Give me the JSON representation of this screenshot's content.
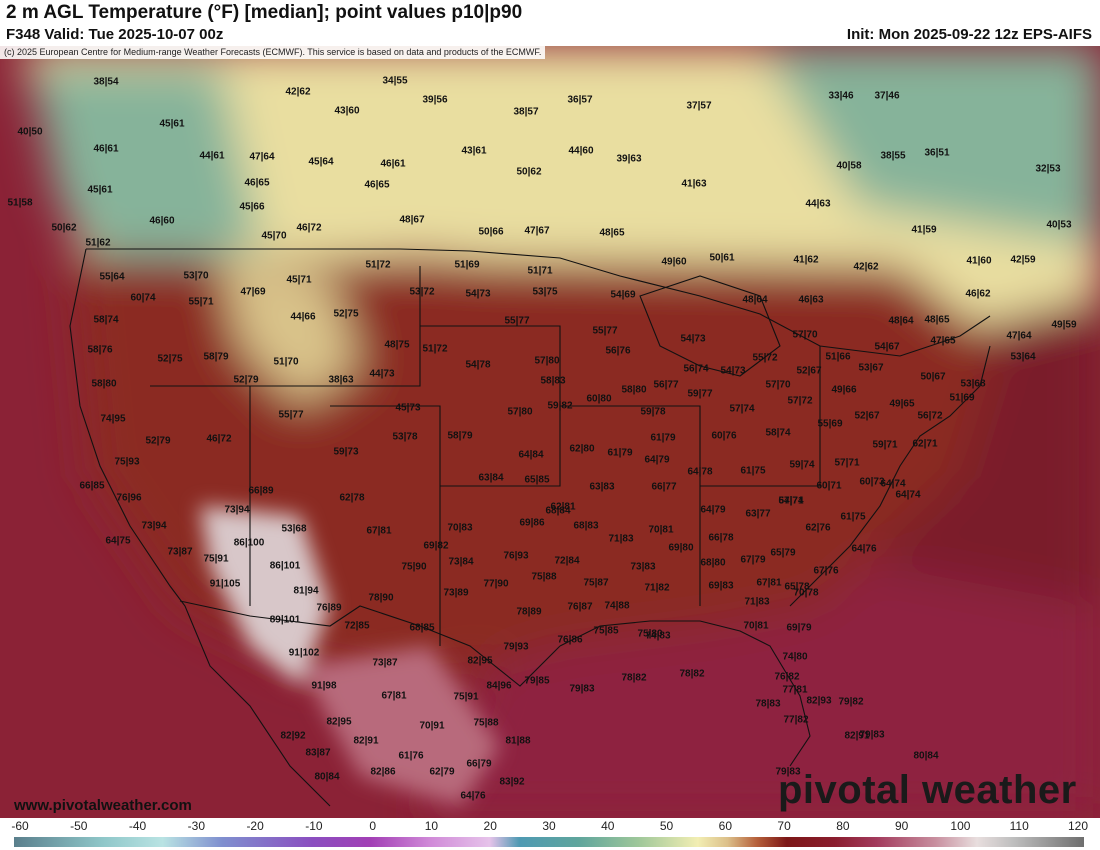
{
  "header": {
    "title": "2 m AGL Temperature (°F) [median]; point values p10|p90",
    "valid": "F348 Valid: Tue 2025-10-07 00z",
    "init": "Init: Mon 2025-09-22 12z EPS-AIFS"
  },
  "copyright": "(c) 2025 European Centre for Medium-range Weather Forecasts (ECMWF). This service is based on data and products of the ECMWF.",
  "website": "www.pivotalweather.com",
  "brand": "pivotal weather",
  "colorbar": {
    "ticks": [
      "-60",
      "-50",
      "-40",
      "-30",
      "-20",
      "-10",
      "0",
      "10",
      "20",
      "30",
      "40",
      "50",
      "60",
      "70",
      "80",
      "90",
      "100",
      "110",
      "120"
    ],
    "range": [
      -60,
      120
    ],
    "stops": [
      {
        "v": -60,
        "c": "#5a7f8c"
      },
      {
        "v": -45,
        "c": "#8fc7c9"
      },
      {
        "v": -35,
        "c": "#b9e3e3"
      },
      {
        "v": -25,
        "c": "#7f8fcf"
      },
      {
        "v": -10,
        "c": "#8a4fc0"
      },
      {
        "v": 0,
        "c": "#a23fb5"
      },
      {
        "v": 10,
        "c": "#d08ad8"
      },
      {
        "v": 20,
        "c": "#e6c3ea"
      },
      {
        "v": 25,
        "c": "#4f9ab3"
      },
      {
        "v": 35,
        "c": "#5fa59c"
      },
      {
        "v": 45,
        "c": "#9ec79a"
      },
      {
        "v": 55,
        "c": "#f2eeb3"
      },
      {
        "v": 60,
        "c": "#dcc08a"
      },
      {
        "v": 65,
        "c": "#b55f3a"
      },
      {
        "v": 70,
        "c": "#7c1717"
      },
      {
        "v": 78,
        "c": "#8a1d2e"
      },
      {
        "v": 85,
        "c": "#a23a5c"
      },
      {
        "v": 95,
        "c": "#c88f9f"
      },
      {
        "v": 102,
        "c": "#e8dede"
      },
      {
        "v": 108,
        "c": "#bfbfbf"
      },
      {
        "v": 120,
        "c": "#6e6e6e"
      }
    ]
  },
  "palette": {
    "ocean_pacific": "#8b2236",
    "ocean_gulf": "#8e2440",
    "ocean_atlantic": "#7a1f2a",
    "canada_cool": "#e9dea0",
    "canada_cold": "#86b39a",
    "us_warm": "#8b2a22",
    "desert_hot": "#d8c7c9",
    "boundary": "#111111"
  },
  "points": [
    {
      "label": "38|54"
    },
    {
      "label": "40|50"
    },
    {
      "label": "46|61"
    },
    {
      "label": "45|61"
    },
    {
      "label": "51|58"
    },
    {
      "label": "50|62"
    },
    {
      "label": "51|62"
    },
    {
      "label": "45|61"
    },
    {
      "label": "44|61"
    },
    {
      "label": "47|64"
    },
    {
      "label": "46|65"
    },
    {
      "label": "45|66"
    },
    {
      "label": "46|60"
    },
    {
      "label": "45|70"
    },
    {
      "label": "46|72"
    },
    {
      "label": "42|62"
    },
    {
      "label": "43|60"
    },
    {
      "label": "34|55"
    },
    {
      "label": "39|56"
    },
    {
      "label": "45|64"
    },
    {
      "label": "46|61"
    },
    {
      "label": "46|65"
    },
    {
      "label": "48|67"
    },
    {
      "label": "38|57"
    },
    {
      "label": "36|57"
    },
    {
      "label": "43|61"
    },
    {
      "label": "50|62"
    },
    {
      "label": "44|60"
    },
    {
      "label": "39|63"
    },
    {
      "label": "50|66"
    },
    {
      "label": "47|67"
    },
    {
      "label": "48|65"
    },
    {
      "label": "37|57"
    },
    {
      "label": "41|63"
    },
    {
      "label": "33|46"
    },
    {
      "label": "37|46"
    },
    {
      "label": "40|58"
    },
    {
      "label": "38|55"
    },
    {
      "label": "36|51"
    },
    {
      "label": "32|53"
    },
    {
      "label": "44|63"
    },
    {
      "label": "41|59"
    },
    {
      "label": "40|53"
    },
    {
      "label": "55|64"
    },
    {
      "label": "53|70"
    },
    {
      "label": "60|74"
    },
    {
      "label": "55|71"
    },
    {
      "label": "47|69"
    },
    {
      "label": "45|71"
    },
    {
      "label": "51|72"
    },
    {
      "label": "51|69"
    },
    {
      "label": "51|71"
    },
    {
      "label": "53|72"
    },
    {
      "label": "54|73"
    },
    {
      "label": "53|75"
    },
    {
      "label": "49|60"
    },
    {
      "label": "50|61"
    },
    {
      "label": "41|62"
    },
    {
      "label": "42|62"
    },
    {
      "label": "41|60"
    },
    {
      "label": "42|59"
    },
    {
      "label": "46|62"
    },
    {
      "label": "58|74"
    },
    {
      "label": "44|66"
    },
    {
      "label": "52|75"
    },
    {
      "label": "55|77"
    },
    {
      "label": "54|69"
    },
    {
      "label": "48|64"
    },
    {
      "label": "46|63"
    },
    {
      "label": "48|64"
    },
    {
      "label": "48|65"
    },
    {
      "label": "47|64"
    },
    {
      "label": "49|59"
    },
    {
      "label": "58|76"
    },
    {
      "label": "52|75"
    },
    {
      "label": "58|79"
    },
    {
      "label": "51|70"
    },
    {
      "label": "48|75"
    },
    {
      "label": "51|72"
    },
    {
      "label": "55|77"
    },
    {
      "label": "56|76"
    },
    {
      "label": "54|73"
    },
    {
      "label": "57|70"
    },
    {
      "label": "51|66"
    },
    {
      "label": "54|67"
    },
    {
      "label": "47|65"
    },
    {
      "label": "53|64"
    },
    {
      "label": "58|80"
    },
    {
      "label": "52|79"
    },
    {
      "label": "38|63"
    },
    {
      "label": "44|73"
    },
    {
      "label": "54|78"
    },
    {
      "label": "57|80"
    },
    {
      "label": "58|83"
    },
    {
      "label": "56|74"
    },
    {
      "label": "54|73"
    },
    {
      "label": "55|72"
    },
    {
      "label": "52|67"
    },
    {
      "label": "53|67"
    },
    {
      "label": "50|67"
    },
    {
      "label": "53|68"
    },
    {
      "label": "74|95"
    },
    {
      "label": "55|77"
    },
    {
      "label": "45|73"
    },
    {
      "label": "57|80"
    },
    {
      "label": "59|82"
    },
    {
      "label": "60|80"
    },
    {
      "label": "58|80"
    },
    {
      "label": "56|77"
    },
    {
      "label": "59|77"
    },
    {
      "label": "57|70"
    },
    {
      "label": "49|66"
    },
    {
      "label": "51|69"
    },
    {
      "label": "52|79"
    },
    {
      "label": "46|72"
    },
    {
      "label": "53|78"
    },
    {
      "label": "58|79"
    },
    {
      "label": "59|78"
    },
    {
      "label": "57|74"
    },
    {
      "label": "57|72"
    },
    {
      "label": "49|65"
    },
    {
      "label": "52|67"
    },
    {
      "label": "55|69"
    },
    {
      "label": "56|72"
    },
    {
      "label": "75|93"
    },
    {
      "label": "59|73"
    },
    {
      "label": "62|80"
    },
    {
      "label": "61|79"
    },
    {
      "label": "61|79"
    },
    {
      "label": "60|76"
    },
    {
      "label": "58|74"
    },
    {
      "label": "59|71"
    },
    {
      "label": "62|71"
    },
    {
      "label": "66|85"
    },
    {
      "label": "64|84"
    },
    {
      "label": "63|84"
    },
    {
      "label": "65|85"
    },
    {
      "label": "63|83"
    },
    {
      "label": "64|79"
    },
    {
      "label": "64|78"
    },
    {
      "label": "61|75"
    },
    {
      "label": "59|74"
    },
    {
      "label": "57|71"
    },
    {
      "label": "60|73"
    },
    {
      "label": "76|96"
    },
    {
      "label": "66|89"
    },
    {
      "label": "62|78"
    },
    {
      "label": "62|81"
    },
    {
      "label": "66|77"
    },
    {
      "label": "64|74"
    },
    {
      "label": "57|71"
    },
    {
      "label": "60|71"
    },
    {
      "label": "64|74"
    },
    {
      "label": "73|94"
    },
    {
      "label": "73|94"
    },
    {
      "label": "68|84"
    },
    {
      "label": "64|74"
    },
    {
      "label": "64|79"
    },
    {
      "label": "63|77"
    },
    {
      "label": "61|75"
    },
    {
      "label": "64|75"
    },
    {
      "label": "53|68"
    },
    {
      "label": "67|81"
    },
    {
      "label": "70|83"
    },
    {
      "label": "69|86"
    },
    {
      "label": "68|83"
    },
    {
      "label": "70|81"
    },
    {
      "label": "62|76"
    },
    {
      "label": "86|100"
    },
    {
      "label": "71|83"
    },
    {
      "label": "69|82"
    },
    {
      "label": "66|78"
    },
    {
      "label": "67|79"
    },
    {
      "label": "64|76"
    },
    {
      "label": "73|87"
    },
    {
      "label": "75|91"
    },
    {
      "label": "86|101"
    },
    {
      "label": "75|90"
    },
    {
      "label": "73|84"
    },
    {
      "label": "76|93"
    },
    {
      "label": "72|84"
    },
    {
      "label": "69|80"
    },
    {
      "label": "68|80"
    },
    {
      "label": "65|79"
    },
    {
      "label": "67|76"
    },
    {
      "label": "91|105"
    },
    {
      "label": "81|94"
    },
    {
      "label": "78|90"
    },
    {
      "label": "73|89"
    },
    {
      "label": "77|90"
    },
    {
      "label": "75|88"
    },
    {
      "label": "75|87"
    },
    {
      "label": "73|83"
    },
    {
      "label": "69|83"
    },
    {
      "label": "67|81"
    },
    {
      "label": "65|78"
    },
    {
      "label": "76|89"
    },
    {
      "label": "78|89"
    },
    {
      "label": "74|88"
    },
    {
      "label": "71|82"
    },
    {
      "label": "71|83"
    },
    {
      "label": "70|78"
    },
    {
      "label": "89|101"
    },
    {
      "label": "72|85"
    },
    {
      "label": "68|85"
    },
    {
      "label": "76|87"
    },
    {
      "label": "74|83"
    },
    {
      "label": "70|81"
    },
    {
      "label": "69|79"
    },
    {
      "label": "91|102"
    },
    {
      "label": "79|93"
    },
    {
      "label": "76|86"
    },
    {
      "label": "75|85"
    },
    {
      "label": "75|80"
    },
    {
      "label": "73|87"
    },
    {
      "label": "82|95"
    },
    {
      "label": "74|80"
    },
    {
      "label": "91|98"
    },
    {
      "label": "67|81"
    },
    {
      "label": "75|91"
    },
    {
      "label": "84|96"
    },
    {
      "label": "79|85"
    },
    {
      "label": "79|83"
    },
    {
      "label": "78|82"
    },
    {
      "label": "78|82"
    },
    {
      "label": "76|82"
    },
    {
      "label": "77|81"
    },
    {
      "label": "82|95"
    },
    {
      "label": "70|91"
    },
    {
      "label": "75|88"
    },
    {
      "label": "82|92"
    },
    {
      "label": "78|83"
    },
    {
      "label": "79|82"
    },
    {
      "label": "82|91"
    },
    {
      "label": "77|82"
    },
    {
      "label": "82|93"
    },
    {
      "label": "82|91"
    },
    {
      "label": "81|88"
    },
    {
      "label": "79|83"
    },
    {
      "label": "83|87"
    },
    {
      "label": "61|76"
    },
    {
      "label": "80|84"
    },
    {
      "label": "80|84"
    },
    {
      "label": "82|86"
    },
    {
      "label": "62|79"
    },
    {
      "label": "66|79"
    },
    {
      "label": "83|92"
    },
    {
      "label": "79|83"
    },
    {
      "label": "64|76"
    }
  ]
}
